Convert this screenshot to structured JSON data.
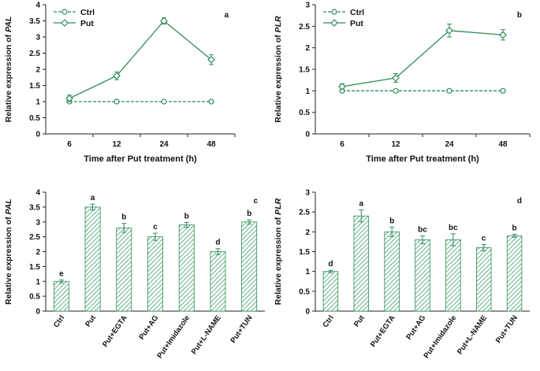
{
  "colors": {
    "series": "#2e8b57",
    "axis": "#222222"
  },
  "chart_data": [
    {
      "type": "line",
      "panel": "a",
      "ylabel_prefix": "Relative expression of ",
      "ylabel_gene": "PAL",
      "xlabel": "Time after Put treatment (h)",
      "categories": [
        "6",
        "12",
        "24",
        "48"
      ],
      "ylim": [
        0,
        4
      ],
      "yticks": [
        "0",
        "0.5",
        "1",
        "1.5",
        "2",
        "2.5",
        "3",
        "3.5",
        "4"
      ],
      "series": [
        {
          "name": "Ctrl",
          "values": [
            1,
            1,
            1,
            1
          ],
          "errors": [
            0.03,
            0.03,
            0.03,
            0.03
          ],
          "style": "dashed"
        },
        {
          "name": "Put",
          "values": [
            1.1,
            1.8,
            3.5,
            2.3
          ],
          "errors": [
            0.1,
            0.12,
            0.1,
            0.15
          ],
          "style": "solid"
        }
      ],
      "legend": "top-left"
    },
    {
      "type": "line",
      "panel": "b",
      "ylabel_prefix": "Relative expression of ",
      "ylabel_gene": "PLR",
      "xlabel": "Time after Put treatment (h)",
      "categories": [
        "6",
        "12",
        "24",
        "48"
      ],
      "ylim": [
        0,
        3
      ],
      "yticks": [
        "0",
        "0.5",
        "1",
        "1.5",
        "2",
        "2.5",
        "3"
      ],
      "series": [
        {
          "name": "Ctrl",
          "values": [
            1,
            1,
            1,
            1
          ],
          "errors": [
            0.03,
            0.03,
            0.03,
            0.03
          ],
          "style": "dashed"
        },
        {
          "name": "Put",
          "values": [
            1.1,
            1.3,
            2.4,
            2.3
          ],
          "errors": [
            0.06,
            0.1,
            0.15,
            0.12
          ],
          "style": "solid"
        }
      ],
      "legend": "top-left"
    },
    {
      "type": "bar",
      "panel": "c",
      "ylabel_prefix": "Relative expression of ",
      "ylabel_gene": "PAL",
      "categories": [
        "Ctrl",
        "Put",
        "Put+EGTA",
        "Put+AG",
        "Put+Imidazole",
        "Put+L-NAME",
        "Put+TUN"
      ],
      "values": [
        1,
        3.5,
        2.8,
        2.5,
        2.9,
        2.0,
        3.0
      ],
      "errors": [
        0.05,
        0.1,
        0.15,
        0.12,
        0.08,
        0.1,
        0.07
      ],
      "letters": [
        "e",
        "a",
        "b",
        "c",
        "b",
        "d",
        "b"
      ],
      "ylim": [
        0,
        4
      ],
      "yticks": [
        "0",
        "0.5",
        "1",
        "1.5",
        "2",
        "2.5",
        "3",
        "3.5",
        "4"
      ]
    },
    {
      "type": "bar",
      "panel": "d",
      "ylabel_prefix": "Relative expression of ",
      "ylabel_gene": "PLR",
      "categories": [
        "Ctrl",
        "Put",
        "Put+EGTA",
        "Put+AG",
        "Put+Imidazole",
        "Put+L-NAME",
        "Put+TUN"
      ],
      "values": [
        1,
        2.4,
        2.0,
        1.8,
        1.8,
        1.6,
        1.9
      ],
      "errors": [
        0.03,
        0.15,
        0.12,
        0.1,
        0.15,
        0.08,
        0.04
      ],
      "letters": [
        "d",
        "a",
        "b",
        "bc",
        "bc",
        "c",
        "b"
      ],
      "ylim": [
        0,
        3
      ],
      "yticks": [
        "0",
        "0.5",
        "1",
        "1.5",
        "2",
        "2.5",
        "3"
      ]
    }
  ]
}
